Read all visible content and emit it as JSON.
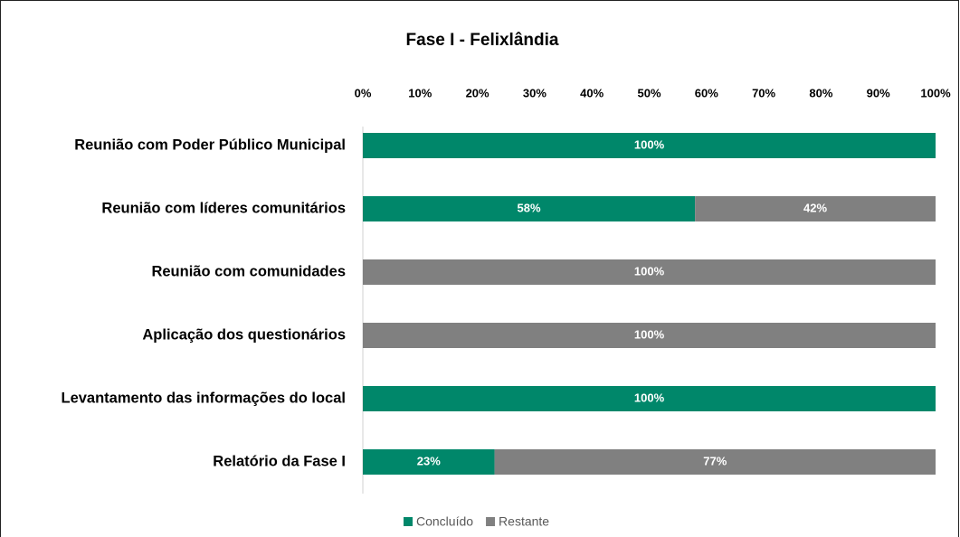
{
  "chart_data": {
    "type": "stacked_bar_horizontal",
    "title": "Fase I - Felixlândia",
    "categories": [
      "Reunião com Poder Público Municipal",
      "Reunião com líderes comunitários",
      "Reunião com comunidades",
      "Aplicação dos questionários",
      "Levantamento das informações do local",
      "Relatório da Fase I"
    ],
    "series": [
      {
        "name": "Concluído",
        "color": "#00876a",
        "values": [
          100,
          58,
          0,
          0,
          100,
          23
        ],
        "value_labels": [
          "100%",
          "58%",
          null,
          null,
          "100%",
          "23%"
        ]
      },
      {
        "name": "Restante",
        "color": "#808080",
        "values": [
          0,
          42,
          100,
          100,
          0,
          77
        ],
        "value_labels": [
          null,
          "42%",
          "100%",
          "100%",
          null,
          "77%"
        ]
      }
    ],
    "xlim": [
      0,
      100
    ],
    "xticks": [
      {
        "value": 0,
        "label": "0%"
      },
      {
        "value": 10,
        "label": "10%"
      },
      {
        "value": 20,
        "label": "20%"
      },
      {
        "value": 30,
        "label": "30%"
      },
      {
        "value": 40,
        "label": "40%"
      },
      {
        "value": 50,
        "label": "50%"
      },
      {
        "value": 60,
        "label": "60%"
      },
      {
        "value": 70,
        "label": "70%"
      },
      {
        "value": 80,
        "label": "80%"
      },
      {
        "value": 90,
        "label": "90%"
      },
      {
        "value": 100,
        "label": "100%"
      }
    ],
    "legend": "bottom"
  }
}
